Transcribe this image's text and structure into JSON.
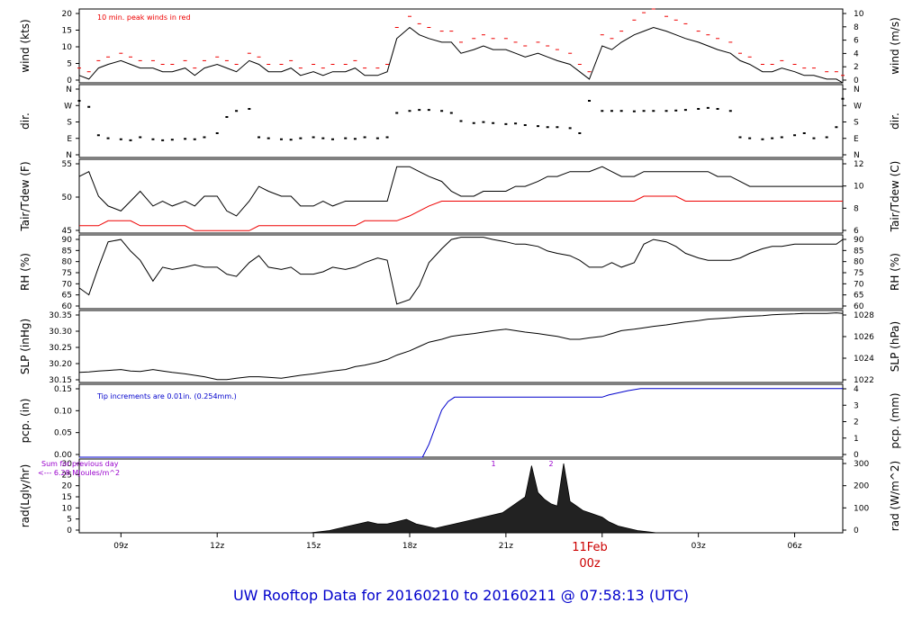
{
  "footer_title": "UW Rooftop Data for 20160210  to  20160211 @ 07:58:13  (UTC)",
  "date_marker": {
    "label": "11Feb",
    "sub": "00z",
    "color": "#cc0000"
  },
  "x_ticks": [
    "09z",
    "12z",
    "15z",
    "18z",
    "21z",
    "",
    "03z",
    "06z"
  ],
  "colors": {
    "black": "#000000",
    "red": "#ee0000",
    "blue": "#0000cc",
    "purple": "#9900cc",
    "title": "#0000cc"
  },
  "chart_data": [
    {
      "id": "wind",
      "type": "line",
      "ylabel_left": "wind (kts)",
      "ylabel_right": "wind (m/s)",
      "annotation": "10 min. peak winds in red",
      "yticks_left": [
        "0",
        "5",
        "10",
        "15",
        "20"
      ],
      "yticks_right": [
        "0",
        "2",
        "4",
        "6",
        "8",
        "10"
      ],
      "ylim": [
        0,
        20
      ],
      "x": [
        7.7,
        8,
        8.3,
        8.6,
        9,
        9.3,
        9.6,
        10,
        10.3,
        10.6,
        11,
        11.3,
        11.6,
        12,
        12.3,
        12.6,
        13,
        13.3,
        13.6,
        14,
        14.3,
        14.6,
        15,
        15.3,
        15.6,
        16,
        16.3,
        16.6,
        17,
        17.3,
        17.6,
        18,
        18.3,
        18.6,
        19,
        19.3,
        19.6,
        20,
        20.3,
        20.6,
        21,
        21.3,
        21.6,
        22,
        22.3,
        22.6,
        23,
        23.3,
        23.6,
        24,
        24.3,
        24.6,
        25,
        25.3,
        25.6,
        26,
        26.3,
        26.6,
        27,
        27.3,
        27.6,
        28,
        28.3,
        28.6,
        29,
        29.3,
        29.6,
        30,
        30.3,
        30.6,
        31,
        31.3,
        31.5
      ],
      "series": [
        {
          "values": [
            2,
            1,
            4,
            5,
            6,
            5,
            4,
            4,
            3,
            3,
            4,
            2,
            4,
            5,
            4,
            3,
            6,
            5,
            3,
            3,
            4,
            2,
            3,
            2,
            3,
            3,
            4,
            2,
            2,
            3,
            12,
            15,
            13,
            12,
            11,
            11,
            8,
            9,
            10,
            9,
            9,
            8,
            7,
            8,
            7,
            6,
            5,
            3,
            1,
            10,
            9,
            11,
            13,
            14,
            15,
            14,
            13,
            12,
            11,
            10,
            9,
            8,
            6,
            5,
            3,
            3,
            4,
            3,
            2,
            2,
            1,
            1,
            0
          ]
        },
        {
          "values": [
            4,
            3,
            6,
            7,
            8,
            7,
            6,
            6,
            5,
            5,
            6,
            4,
            6,
            7,
            6,
            5,
            8,
            7,
            5,
            5,
            6,
            4,
            5,
            4,
            5,
            5,
            6,
            4,
            4,
            5,
            15,
            18,
            16,
            15,
            14,
            14,
            11,
            12,
            13,
            12,
            12,
            11,
            10,
            11,
            10,
            9,
            8,
            5,
            3,
            13,
            12,
            14,
            17,
            19,
            20,
            18,
            17,
            16,
            14,
            13,
            12,
            11,
            8,
            7,
            5,
            5,
            6,
            5,
            4,
            4,
            3,
            3,
            2
          ]
        }
      ]
    },
    {
      "id": "dir",
      "type": "scatter",
      "ylabel_left": "dir.",
      "ylabel_right": "dir.",
      "yticks_left": [
        "N",
        "E",
        "S",
        "W",
        "N"
      ],
      "yticks_right": [
        "N",
        "E",
        "S",
        "W",
        "N"
      ],
      "ylim": [
        0,
        360
      ],
      "x": [
        7.7,
        8,
        8.3,
        8.6,
        9,
        9.3,
        9.6,
        10,
        10.3,
        10.6,
        11,
        11.3,
        11.6,
        12,
        12.3,
        12.6,
        13,
        13.3,
        13.6,
        14,
        14.3,
        14.6,
        15,
        15.3,
        15.6,
        16,
        16.3,
        16.6,
        17,
        17.3,
        17.6,
        18,
        18.3,
        18.6,
        19,
        19.3,
        19.6,
        20,
        20.3,
        20.6,
        21,
        21.3,
        21.6,
        22,
        22.3,
        22.6,
        23,
        23.3,
        23.6,
        24,
        24.3,
        24.6,
        25,
        25.3,
        25.6,
        26,
        26.3,
        26.6,
        27,
        27.3,
        27.6,
        28,
        28.3,
        28.6,
        29,
        29.3,
        29.6,
        30,
        30.3,
        30.6,
        31,
        31.3,
        31.5
      ],
      "series": [
        {
          "values": [
            280,
            250,
            110,
            95,
            90,
            85,
            100,
            90,
            85,
            88,
            92,
            90,
            100,
            120,
            200,
            230,
            240,
            100,
            95,
            90,
            88,
            95,
            100,
            95,
            90,
            95,
            92,
            100,
            95,
            100,
            220,
            230,
            235,
            235,
            230,
            220,
            180,
            170,
            175,
            170,
            165,
            168,
            160,
            155,
            150,
            150,
            145,
            120,
            280,
            230,
            230,
            230,
            228,
            230,
            230,
            230,
            232,
            235,
            240,
            245,
            240,
            230,
            100,
            95,
            90,
            95,
            100,
            110,
            120,
            95,
            100,
            150,
            290
          ]
        }
      ]
    },
    {
      "id": "temp",
      "type": "line",
      "ylabel_left": "Tair/Tdew (F)",
      "ylabel_right": "Tair/Tdew (C)",
      "yticks_left": [
        "45",
        "50",
        "55"
      ],
      "yticks_right": [
        "6",
        "8",
        "10",
        "12"
      ],
      "ylim": [
        41.5,
        56.5
      ],
      "x": [
        7.7,
        8,
        8.3,
        8.6,
        9,
        9.3,
        9.6,
        10,
        10.3,
        10.6,
        11,
        11.3,
        11.6,
        12,
        12.3,
        12.6,
        13,
        13.3,
        13.6,
        14,
        14.3,
        14.6,
        15,
        15.3,
        15.6,
        16,
        16.3,
        16.6,
        17,
        17.3,
        17.6,
        18,
        18.3,
        18.6,
        19,
        19.3,
        19.6,
        20,
        20.3,
        20.6,
        21,
        21.3,
        21.6,
        22,
        22.3,
        22.6,
        23,
        23.3,
        23.6,
        24,
        24.3,
        24.6,
        25,
        25.3,
        25.6,
        26,
        26.3,
        26.6,
        27,
        27.3,
        27.6,
        28,
        28.3,
        28.6,
        29,
        29.3,
        29.6,
        30,
        30.3,
        30.6,
        31,
        31.3,
        31.5
      ],
      "series": [
        {
          "name": "Tair",
          "values": [
            53,
            54,
            49,
            47,
            46,
            48,
            50,
            47,
            48,
            47,
            48,
            47,
            49,
            49,
            46,
            45,
            48,
            51,
            50,
            49,
            49,
            47,
            47,
            48,
            47,
            48,
            48,
            48,
            48,
            48,
            55,
            55,
            54,
            53,
            52,
            50,
            49,
            49,
            50,
            50,
            50,
            51,
            51,
            52,
            53,
            53,
            54,
            54,
            54,
            55,
            54,
            53,
            53,
            54,
            54,
            54,
            54,
            54,
            54,
            54,
            53,
            53,
            52,
            51,
            51,
            51,
            51,
            51,
            51,
            51,
            51,
            51,
            51
          ]
        },
        {
          "name": "Tdew",
          "values": [
            43,
            43,
            43,
            44,
            44,
            44,
            43,
            43,
            43,
            43,
            43,
            42,
            42,
            42,
            42,
            42,
            42,
            43,
            43,
            43,
            43,
            43,
            43,
            43,
            43,
            43,
            43,
            44,
            44,
            44,
            44,
            45,
            46,
            47,
            48,
            48,
            48,
            48,
            48,
            48,
            48,
            48,
            48,
            48,
            48,
            48,
            48,
            48,
            48,
            48,
            48,
            48,
            48,
            49,
            49,
            49,
            49,
            48,
            48,
            48,
            48,
            48,
            48,
            48,
            48,
            48,
            48,
            48,
            48,
            48,
            48,
            48,
            48
          ]
        }
      ]
    },
    {
      "id": "rh",
      "type": "line",
      "ylabel_left": "RH (%)",
      "ylabel_right": "RH (%)",
      "yticks_left": [
        "60",
        "65",
        "70",
        "75",
        "80",
        "85",
        "90"
      ],
      "yticks_right": [
        "60",
        "65",
        "70",
        "75",
        "80",
        "85",
        "90"
      ],
      "ylim": [
        60,
        92
      ],
      "x": [
        7.7,
        8,
        8.3,
        8.6,
        9,
        9.3,
        9.6,
        10,
        10.3,
        10.6,
        11,
        11.3,
        11.6,
        12,
        12.3,
        12.6,
        13,
        13.3,
        13.6,
        14,
        14.3,
        14.6,
        15,
        15.3,
        15.6,
        16,
        16.3,
        16.6,
        17,
        17.3,
        17.6,
        18,
        18.3,
        18.6,
        19,
        19.3,
        19.6,
        20,
        20.3,
        20.6,
        21,
        21.3,
        21.6,
        22,
        22.3,
        22.6,
        23,
        23.3,
        23.6,
        24,
        24.3,
        24.6,
        25,
        25.3,
        25.6,
        26,
        26.3,
        26.6,
        27,
        27.3,
        27.6,
        28,
        28.3,
        28.6,
        29,
        29.3,
        29.6,
        30,
        30.3,
        30.6,
        31,
        31.3,
        31.5
      ],
      "series": [
        {
          "values": [
            69,
            66,
            78,
            89,
            90,
            85,
            81,
            72,
            78,
            77,
            78,
            79,
            78,
            78,
            75,
            74,
            80,
            83,
            78,
            77,
            78,
            75,
            75,
            76,
            78,
            77,
            78,
            80,
            82,
            81,
            62,
            64,
            70,
            80,
            86,
            90,
            91,
            91,
            91,
            90,
            89,
            88,
            88,
            87,
            85,
            84,
            83,
            81,
            78,
            78,
            80,
            78,
            80,
            88,
            90,
            89,
            87,
            84,
            82,
            81,
            81,
            81,
            82,
            84,
            86,
            87,
            87,
            88,
            88,
            88,
            88,
            88,
            90
          ]
        }
      ]
    },
    {
      "id": "slp",
      "type": "line",
      "ylabel_left": "SLP (inHg)",
      "ylabel_right": "SLP (hPa)",
      "yticks_left": [
        "30.15",
        "30.20",
        "30.25",
        "30.30",
        "30.35"
      ],
      "yticks_right": [
        "1022",
        "1024",
        "1026",
        "1028"
      ],
      "ylim": [
        30.13,
        30.38
      ],
      "x": [
        7.7,
        8,
        8.3,
        8.6,
        9,
        9.3,
        9.6,
        10,
        10.3,
        10.6,
        11,
        11.3,
        11.6,
        12,
        12.3,
        12.6,
        13,
        13.3,
        13.6,
        14,
        14.3,
        14.6,
        15,
        15.3,
        15.6,
        16,
        16.3,
        16.6,
        17,
        17.3,
        17.6,
        18,
        18.3,
        18.6,
        19,
        19.3,
        19.6,
        20,
        20.3,
        20.6,
        21,
        21.3,
        21.6,
        22,
        22.3,
        22.6,
        23,
        23.3,
        23.6,
        24,
        24.3,
        24.6,
        25,
        25.3,
        25.6,
        26,
        26.3,
        26.6,
        27,
        27.3,
        27.6,
        28,
        28.3,
        28.6,
        29,
        29.3,
        29.6,
        30,
        30.3,
        30.6,
        31,
        31.3,
        31.5
      ],
      "series": [
        {
          "values": [
            30.165,
            30.167,
            30.17,
            30.172,
            30.175,
            30.17,
            30.168,
            30.175,
            30.17,
            30.165,
            30.16,
            30.155,
            30.15,
            30.14,
            30.14,
            30.145,
            30.15,
            30.15,
            30.148,
            30.145,
            30.15,
            30.155,
            30.16,
            30.165,
            30.17,
            30.175,
            30.185,
            30.19,
            30.2,
            30.21,
            30.225,
            30.24,
            30.255,
            30.27,
            30.28,
            30.29,
            30.295,
            30.3,
            30.305,
            30.31,
            30.315,
            30.31,
            30.305,
            30.3,
            30.295,
            30.29,
            30.28,
            30.28,
            30.285,
            30.29,
            30.3,
            30.31,
            30.315,
            30.32,
            30.325,
            30.33,
            30.335,
            30.34,
            30.345,
            30.35,
            30.352,
            30.355,
            30.358,
            30.36,
            30.362,
            30.365,
            30.367,
            30.368,
            30.37,
            30.37,
            30.37,
            30.372,
            30.37
          ]
        }
      ]
    },
    {
      "id": "pcp",
      "type": "line",
      "ylabel_left": "pcp. (in)",
      "ylabel_right": "pcp. (mm)",
      "annotation": "Tip increments are 0.01in. (0.254mm.)",
      "yticks_left": [
        "0.00",
        "0.05",
        "0.10",
        "0.15"
      ],
      "yticks_right": [
        "0",
        "1",
        "2",
        "3",
        "4"
      ],
      "ylim": [
        0,
        0.17
      ],
      "x": [
        7.7,
        18.4,
        18.6,
        18.8,
        19.0,
        19.2,
        19.4,
        19.6,
        24,
        24.2,
        24.5,
        24.8,
        25.2,
        31.5
      ],
      "series": [
        {
          "values": [
            0,
            0,
            0.03,
            0.07,
            0.11,
            0.13,
            0.14,
            0.14,
            0.14,
            0.145,
            0.15,
            0.155,
            0.16,
            0.16
          ]
        }
      ]
    },
    {
      "id": "rad",
      "type": "area",
      "ylabel_left": "rad(Lgly/hr)",
      "ylabel_right": "rad (W/m^2)",
      "annotation": "Sum for previous day",
      "annotation2": "<--- 6.28 MJoules/m^2",
      "peak_labels": [
        "1",
        "2"
      ],
      "yticks_left": [
        "0",
        "5",
        "10",
        "15",
        "20",
        "25",
        "30"
      ],
      "yticks_right": [
        "0",
        "100",
        "200",
        "300"
      ],
      "ylim": [
        0,
        33
      ],
      "x": [
        7.7,
        14.9,
        15.2,
        15.5,
        15.8,
        16.1,
        16.4,
        16.7,
        17.0,
        17.3,
        17.6,
        17.9,
        18.2,
        18.5,
        18.8,
        19.1,
        19.4,
        19.7,
        20.0,
        20.3,
        20.6,
        20.9,
        21.2,
        21.4,
        21.6,
        21.8,
        22.0,
        22.2,
        22.4,
        22.6,
        22.8,
        23.0,
        23.2,
        23.4,
        23.6,
        23.8,
        24.0,
        24.2,
        24.5,
        24.8,
        25.1,
        25.4,
        25.7,
        26.0,
        31.5
      ],
      "series": [
        {
          "values": [
            0,
            0,
            0.5,
            1,
            2,
            3,
            4,
            5,
            4,
            4,
            5,
            6,
            4,
            3,
            2,
            3,
            4,
            5,
            6,
            7,
            8,
            9,
            12,
            14,
            16,
            30,
            18,
            15,
            13,
            12,
            31,
            14,
            12,
            10,
            9,
            8,
            7,
            5,
            3,
            2,
            1,
            0.5,
            0,
            0,
            0
          ]
        }
      ]
    }
  ]
}
